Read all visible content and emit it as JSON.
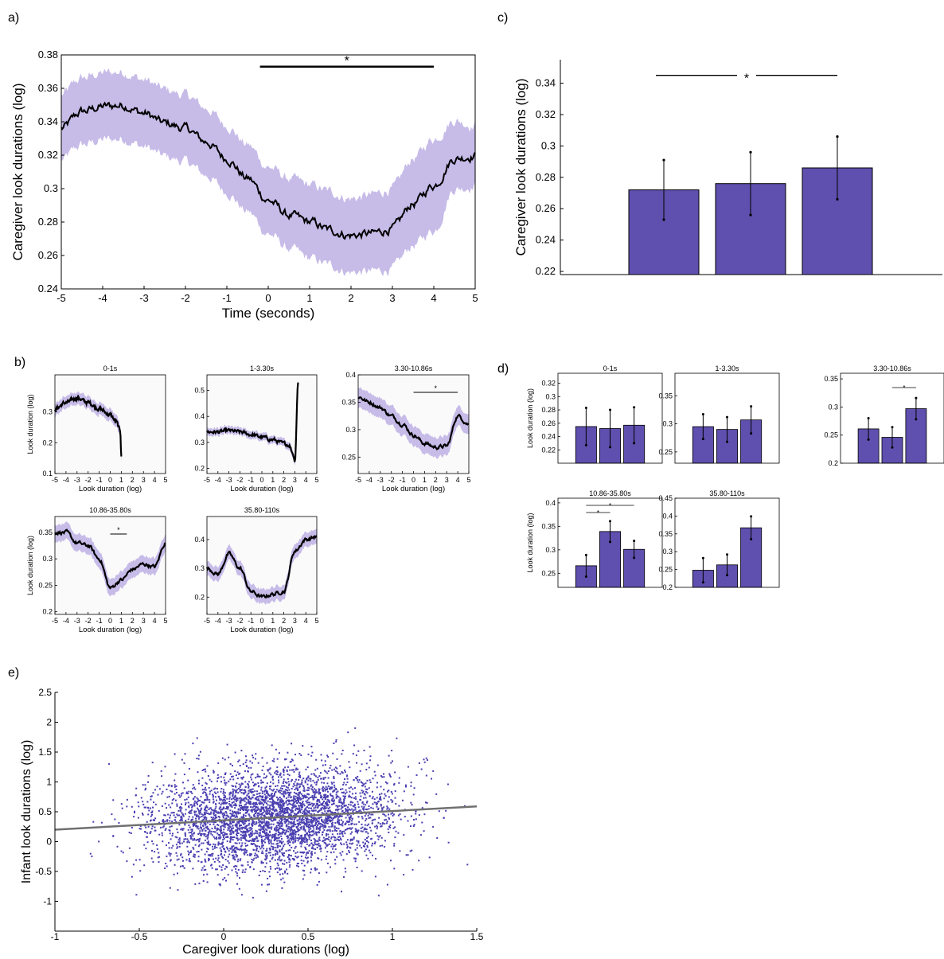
{
  "colors": {
    "band": "#c7bbe8",
    "bar": "#5f4fae",
    "line": "#000000",
    "scatter": "#4a3fb0",
    "fit": "#707070",
    "plot_bg": "#fafafa"
  },
  "chart_data": [
    {
      "id": "a",
      "panel_label": "a)",
      "type": "line",
      "title": "",
      "xlabel": "Time (seconds)",
      "ylabel": "Caregiver look durations (log)",
      "xlim": [
        -5,
        5
      ],
      "ylim": [
        0.24,
        0.38
      ],
      "xticks": [
        "-5",
        "-4",
        "-3",
        "-2",
        "-1",
        "0",
        "1",
        "2",
        "3",
        "4",
        "5"
      ],
      "yticks": [
        "0.24",
        "0.26",
        "0.28",
        "0.3",
        "0.32",
        "0.34",
        "0.36",
        "0.38"
      ],
      "x": [
        -5,
        -4.5,
        -4,
        -3.5,
        -3,
        -2.5,
        -2,
        -1.5,
        -1,
        -0.5,
        0,
        0.5,
        1,
        1.5,
        2,
        2.5,
        3,
        3.5,
        4,
        4.5,
        5
      ],
      "mean": [
        0.336,
        0.346,
        0.349,
        0.35,
        0.345,
        0.339,
        0.336,
        0.328,
        0.318,
        0.306,
        0.293,
        0.284,
        0.28,
        0.275,
        0.272,
        0.273,
        0.276,
        0.291,
        0.302,
        0.318,
        0.32
      ],
      "lower": [
        0.317,
        0.326,
        0.329,
        0.33,
        0.325,
        0.319,
        0.316,
        0.308,
        0.298,
        0.286,
        0.273,
        0.264,
        0.258,
        0.254,
        0.25,
        0.25,
        0.252,
        0.266,
        0.275,
        0.3,
        0.302
      ],
      "upper": [
        0.356,
        0.366,
        0.369,
        0.37,
        0.365,
        0.359,
        0.356,
        0.348,
        0.338,
        0.326,
        0.313,
        0.306,
        0.302,
        0.298,
        0.294,
        0.296,
        0.3,
        0.318,
        0.33,
        0.341,
        0.338
      ],
      "significance": [
        {
          "x_start": -0.2,
          "x_end": 4.0,
          "y": 0.373,
          "label": "*"
        }
      ]
    },
    {
      "id": "c",
      "panel_label": "c)",
      "type": "bar",
      "ylabel": "Caregiver look durations (log)",
      "ylim": [
        0.218,
        0.355
      ],
      "yticks": [
        "0.22",
        "0.24",
        "0.26",
        "0.28",
        "0.3",
        "0.32",
        "0.34"
      ],
      "categories": [
        "",
        "",
        ""
      ],
      "values": [
        0.272,
        0.276,
        0.286
      ],
      "errors": [
        0.019,
        0.02,
        0.02
      ],
      "significance": [
        {
          "from": 0,
          "to": 2,
          "y": 0.345,
          "label": "*"
        }
      ]
    },
    {
      "id": "b",
      "panel_label": "b)",
      "type": "line",
      "xlabel": "Look duration (log)",
      "ylabel": "Look duration (log)",
      "xticks": [
        "-5",
        "-4",
        "-3",
        "-2",
        "-1",
        "0",
        "1",
        "2",
        "3",
        "4",
        "5"
      ],
      "subplots": [
        {
          "title": "0-1s",
          "ylim": [
            0.1,
            0.42
          ],
          "yticks": [
            "0.1",
            "0.2",
            "0.3"
          ],
          "band": 0.02,
          "x": [
            -5,
            -4,
            -3,
            -2,
            -1,
            0,
            0.5,
            0.9,
            1.0
          ],
          "y": [
            0.31,
            0.33,
            0.345,
            0.33,
            0.31,
            0.29,
            0.27,
            0.24,
            0.16
          ],
          "significance": []
        },
        {
          "title": "1-3.30s",
          "ylim": [
            0.18,
            0.56
          ],
          "yticks": [
            "0.2",
            "0.3",
            "0.4",
            "0.5"
          ],
          "band": 0.015,
          "x": [
            -5,
            -4,
            -3,
            -2,
            -1,
            0,
            1,
            2,
            2.5,
            2.8,
            3.0,
            3.3
          ],
          "y": [
            0.34,
            0.34,
            0.345,
            0.34,
            0.33,
            0.32,
            0.31,
            0.295,
            0.29,
            0.26,
            0.23,
            0.53
          ],
          "significance": []
        },
        {
          "title": "3.30-10.86s",
          "ylim": [
            0.22,
            0.4
          ],
          "yticks": [
            "0.25",
            "0.3",
            "0.35",
            "0.4"
          ],
          "band": 0.018,
          "x": [
            -5,
            -4,
            -3,
            -2,
            -1,
            0,
            1,
            2,
            3,
            4,
            5
          ],
          "y": [
            0.36,
            0.35,
            0.34,
            0.325,
            0.31,
            0.29,
            0.275,
            0.268,
            0.27,
            0.325,
            0.31
          ],
          "significance": [
            {
              "x_start": 0,
              "x_end": 4,
              "label": "*"
            }
          ]
        },
        {
          "title": "10.86-35.80s",
          "ylim": [
            0.195,
            0.38
          ],
          "yticks": [
            "0.2",
            "0.25",
            "0.3",
            "0.35"
          ],
          "band": 0.016,
          "x": [
            -5,
            -4,
            -3,
            -2,
            -1,
            0,
            1,
            2,
            3,
            4,
            5
          ],
          "y": [
            0.35,
            0.35,
            0.33,
            0.325,
            0.3,
            0.245,
            0.26,
            0.28,
            0.29,
            0.285,
            0.33
          ],
          "significance": [
            {
              "x_start": 0,
              "x_end": 1.5,
              "label": "*"
            }
          ]
        },
        {
          "title": "35.80-110s",
          "ylim": [
            0.14,
            0.48
          ],
          "yticks": [
            "0.2",
            "0.3",
            "0.4"
          ],
          "band": 0.025,
          "x": [
            -5,
            -4,
            -3,
            -2,
            -1,
            0,
            1,
            2,
            3,
            4,
            5
          ],
          "y": [
            0.3,
            0.28,
            0.35,
            0.3,
            0.22,
            0.2,
            0.21,
            0.22,
            0.36,
            0.4,
            0.41
          ],
          "significance": []
        }
      ]
    },
    {
      "id": "d",
      "panel_label": "d)",
      "type": "bar",
      "ylabel": "Look duration (log)",
      "categories": [
        "",
        "",
        ""
      ],
      "subplots": [
        {
          "title": "0-1s",
          "ylim": [
            0.2,
            0.335
          ],
          "yticks": [
            "0.22",
            "0.24",
            "0.26",
            "0.28",
            "0.3",
            "0.32"
          ],
          "values": [
            0.255,
            0.252,
            0.257
          ],
          "errors": [
            0.028,
            0.028,
            0.027
          ],
          "significance": []
        },
        {
          "title": "1-3.30s",
          "ylim": [
            0.23,
            0.39
          ],
          "yticks": [
            "0.25",
            "0.3",
            "0.35"
          ],
          "values": [
            0.295,
            0.29,
            0.307
          ],
          "errors": [
            0.022,
            0.022,
            0.024
          ],
          "significance": []
        },
        {
          "title": "3.30-10.86s",
          "ylim": [
            0.2,
            0.36
          ],
          "yticks": [
            "0.2",
            "0.25",
            "0.3",
            "0.35"
          ],
          "values": [
            0.261,
            0.246,
            0.297
          ],
          "errors": [
            0.019,
            0.018,
            0.019
          ],
          "significance": [
            {
              "from": 1,
              "to": 2,
              "label": "*"
            }
          ]
        },
        {
          "title": "10.86-35.80s",
          "ylim": [
            0.22,
            0.41
          ],
          "yticks": [
            "0.25",
            "0.3",
            "0.35",
            "0.4"
          ],
          "values": [
            0.266,
            0.339,
            0.301
          ],
          "errors": [
            0.023,
            0.022,
            0.018
          ],
          "significance": [
            {
              "from": 0,
              "to": 1,
              "label": "*"
            },
            {
              "from": 0,
              "to": 2,
              "label": "*"
            }
          ]
        },
        {
          "title": "35.80-110s",
          "ylim": [
            0.2,
            0.45
          ],
          "yticks": [
            "0.2",
            "0.25",
            "0.3",
            "0.35",
            "0.4",
            "0.45"
          ],
          "values": [
            0.248,
            0.263,
            0.367
          ],
          "errors": [
            0.034,
            0.029,
            0.032
          ],
          "significance": []
        }
      ]
    },
    {
      "id": "e",
      "panel_label": "e)",
      "type": "scatter",
      "xlabel": "Caregiver look durations (log)",
      "ylabel": "Infant look durations (log)",
      "xlim": [
        -1,
        1.5
      ],
      "ylim": [
        -1.5,
        2.5
      ],
      "xticks": [
        "-1",
        "-0.5",
        "0",
        "0.5",
        "1",
        "1.5"
      ],
      "yticks": [
        "-1",
        "-0.5",
        "0",
        "0.5",
        "1",
        "1.5",
        "2",
        "2.5"
      ],
      "n_points": 4000,
      "center": [
        0.3,
        0.4
      ],
      "spread": [
        0.36,
        0.42
      ],
      "fit_line": {
        "x": [
          -1,
          1.5
        ],
        "y": [
          0.2,
          0.59
        ]
      }
    }
  ]
}
